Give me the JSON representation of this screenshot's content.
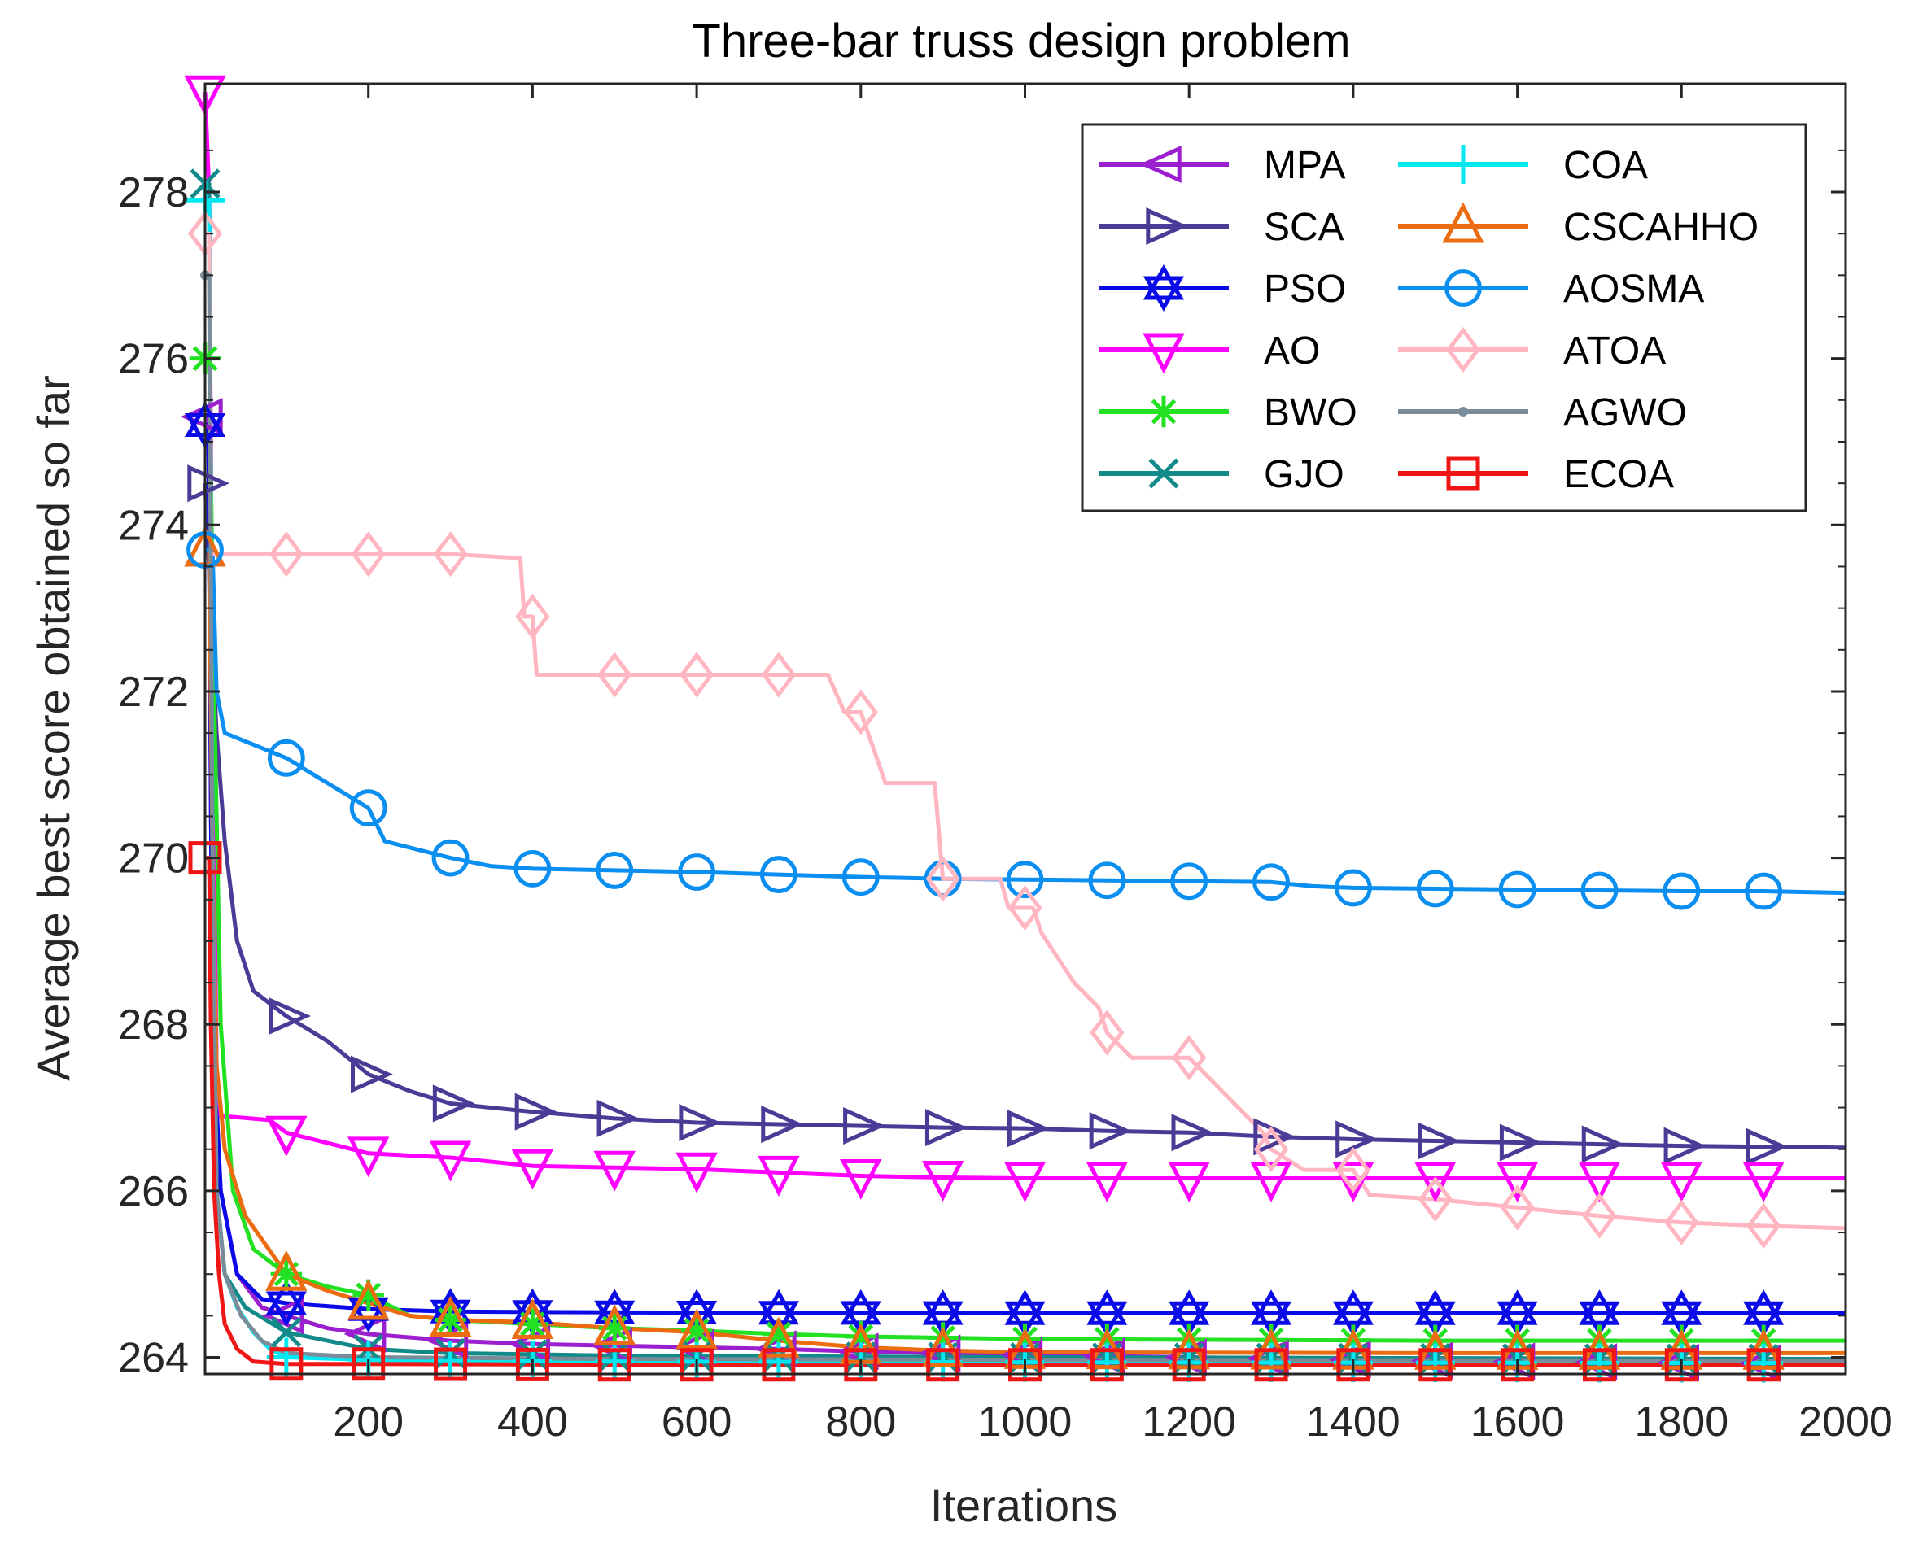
{
  "chart_data": {
    "type": "line",
    "title": "Three-bar truss design problem",
    "xlabel": "Iterations",
    "ylabel": "Average best score obtained so far",
    "xlim": [
      1,
      2000
    ],
    "ylim": [
      263.8,
      279.3
    ],
    "xticks": [
      200,
      400,
      600,
      800,
      1000,
      1200,
      1400,
      1600,
      1800,
      2000
    ],
    "yticks": [
      264,
      266,
      268,
      270,
      272,
      274,
      276,
      278
    ],
    "legend_position": "top-right",
    "series": [
      {
        "name": "MPA",
        "color": "#9B1FCF",
        "marker": "triangle-left",
        "points": [
          [
            1,
            275.3
          ],
          [
            5,
            275.3
          ],
          [
            10,
            268
          ],
          [
            20,
            266
          ],
          [
            40,
            265
          ],
          [
            70,
            264.6
          ],
          [
            100,
            264.5
          ],
          [
            150,
            264.35
          ],
          [
            200,
            264.28
          ],
          [
            300,
            264.2
          ],
          [
            400,
            264.16
          ],
          [
            500,
            264.14
          ],
          [
            600,
            264.12
          ],
          [
            700,
            264.1
          ],
          [
            800,
            264.07
          ],
          [
            1000,
            264.03
          ],
          [
            1200,
            264.0
          ],
          [
            1500,
            263.96
          ],
          [
            2000,
            263.92
          ]
        ]
      },
      {
        "name": "SCA",
        "color": "#4B3A96",
        "marker": "triangle-right",
        "points": [
          [
            1,
            274.5
          ],
          [
            8,
            273
          ],
          [
            15,
            271.5
          ],
          [
            25,
            270.2
          ],
          [
            40,
            269
          ],
          [
            60,
            268.4
          ],
          [
            100,
            268.1
          ],
          [
            150,
            267.8
          ],
          [
            200,
            267.4
          ],
          [
            250,
            267.2
          ],
          [
            300,
            267.05
          ],
          [
            400,
            266.95
          ],
          [
            500,
            266.87
          ],
          [
            600,
            266.82
          ],
          [
            700,
            266.8
          ],
          [
            800,
            266.78
          ],
          [
            900,
            266.76
          ],
          [
            1000,
            266.75
          ],
          [
            1100,
            266.72
          ],
          [
            1200,
            266.7
          ],
          [
            1300,
            266.65
          ],
          [
            1400,
            266.62
          ],
          [
            1500,
            266.6
          ],
          [
            1600,
            266.58
          ],
          [
            1700,
            266.56
          ],
          [
            1800,
            266.54
          ],
          [
            1900,
            266.53
          ],
          [
            2000,
            266.52
          ]
        ]
      },
      {
        "name": "PSO",
        "color": "#0A0AE8",
        "marker": "star",
        "points": [
          [
            1,
            275.2
          ],
          [
            5,
            275.2
          ],
          [
            10,
            268
          ],
          [
            20,
            266
          ],
          [
            40,
            265
          ],
          [
            70,
            264.7
          ],
          [
            100,
            264.65
          ],
          [
            200,
            264.58
          ],
          [
            300,
            264.55
          ],
          [
            500,
            264.54
          ],
          [
            1000,
            264.53
          ],
          [
            2000,
            264.53
          ]
        ]
      },
      {
        "name": "AO",
        "color": "#FF00FF",
        "marker": "triangle-down",
        "points": [
          [
            1,
            279.2
          ],
          [
            6,
            278
          ],
          [
            10,
            272
          ],
          [
            15,
            267.5
          ],
          [
            20,
            266.9
          ],
          [
            80,
            266.85
          ],
          [
            100,
            266.7
          ],
          [
            200,
            266.45
          ],
          [
            300,
            266.4
          ],
          [
            400,
            266.3
          ],
          [
            500,
            266.28
          ],
          [
            600,
            266.26
          ],
          [
            700,
            266.22
          ],
          [
            800,
            266.18
          ],
          [
            900,
            266.16
          ],
          [
            1000,
            266.15
          ],
          [
            1500,
            266.15
          ],
          [
            2000,
            266.15
          ]
        ]
      },
      {
        "name": "BWO",
        "color": "#22E022",
        "marker": "asterisk",
        "points": [
          [
            1,
            276
          ],
          [
            6,
            276
          ],
          [
            12,
            272
          ],
          [
            20,
            268
          ],
          [
            35,
            266
          ],
          [
            60,
            265.3
          ],
          [
            100,
            265
          ],
          [
            150,
            264.85
          ],
          [
            200,
            264.75
          ],
          [
            250,
            264.5
          ],
          [
            300,
            264.45
          ],
          [
            400,
            264.4
          ],
          [
            500,
            264.35
          ],
          [
            600,
            264.32
          ],
          [
            700,
            264.28
          ],
          [
            800,
            264.25
          ],
          [
            1000,
            264.22
          ],
          [
            1500,
            264.2
          ],
          [
            2000,
            264.2
          ]
        ]
      },
      {
        "name": "GJO",
        "color": "#138A8A",
        "marker": "x",
        "points": [
          [
            1,
            278.1
          ],
          [
            6,
            278.1
          ],
          [
            10,
            270
          ],
          [
            15,
            266
          ],
          [
            25,
            265
          ],
          [
            50,
            264.6
          ],
          [
            100,
            264.3
          ],
          [
            150,
            264.2
          ],
          [
            200,
            264.1
          ],
          [
            300,
            264.05
          ],
          [
            500,
            264.02
          ],
          [
            1000,
            264.0
          ],
          [
            2000,
            263.98
          ]
        ]
      },
      {
        "name": "COA",
        "color": "#00E8F2",
        "marker": "plus",
        "points": [
          [
            1,
            277.9
          ],
          [
            6,
            277.9
          ],
          [
            10,
            270
          ],
          [
            15,
            266
          ],
          [
            25,
            265
          ],
          [
            40,
            264.6
          ],
          [
            60,
            264.3
          ],
          [
            80,
            264.1
          ],
          [
            100,
            264.0
          ],
          [
            200,
            263.97
          ],
          [
            500,
            263.95
          ],
          [
            1000,
            263.94
          ],
          [
            2000,
            263.93
          ]
        ]
      },
      {
        "name": "CSCAHHO",
        "color": "#EC6C12",
        "marker": "triangle-up",
        "points": [
          [
            1,
            273.7
          ],
          [
            6,
            273.7
          ],
          [
            10,
            270
          ],
          [
            15,
            267.5
          ],
          [
            25,
            266.5
          ],
          [
            50,
            265.7
          ],
          [
            100,
            265.0
          ],
          [
            150,
            264.8
          ],
          [
            200,
            264.65
          ],
          [
            250,
            264.5
          ],
          [
            300,
            264.45
          ],
          [
            400,
            264.42
          ],
          [
            500,
            264.35
          ],
          [
            600,
            264.3
          ],
          [
            700,
            264.2
          ],
          [
            800,
            264.12
          ],
          [
            900,
            264.08
          ],
          [
            1000,
            264.06
          ],
          [
            1500,
            264.05
          ],
          [
            2000,
            264.05
          ]
        ]
      },
      {
        "name": "AOSMA",
        "color": "#0A8EF0",
        "marker": "circle",
        "points": [
          [
            1,
            273.7
          ],
          [
            10,
            273.7
          ],
          [
            15,
            272
          ],
          [
            25,
            271.5
          ],
          [
            50,
            271.4
          ],
          [
            100,
            271.2
          ],
          [
            150,
            270.9
          ],
          [
            200,
            270.6
          ],
          [
            220,
            270.2
          ],
          [
            300,
            270.0
          ],
          [
            350,
            269.9
          ],
          [
            400,
            269.87
          ],
          [
            500,
            269.85
          ],
          [
            600,
            269.83
          ],
          [
            700,
            269.8
          ],
          [
            800,
            269.77
          ],
          [
            900,
            269.75
          ],
          [
            1000,
            269.74
          ],
          [
            1100,
            269.73
          ],
          [
            1200,
            269.72
          ],
          [
            1300,
            269.71
          ],
          [
            1350,
            269.66
          ],
          [
            1400,
            269.64
          ],
          [
            1500,
            269.63
          ],
          [
            1600,
            269.62
          ],
          [
            1700,
            269.61
          ],
          [
            1800,
            269.6
          ],
          [
            1900,
            269.6
          ],
          [
            2000,
            269.58
          ]
        ]
      },
      {
        "name": "ATOA",
        "color": "#FFB6C1",
        "marker": "diamond",
        "points": [
          [
            1,
            277.5
          ],
          [
            6,
            277.5
          ],
          [
            8,
            273.65
          ],
          [
            100,
            273.65
          ],
          [
            200,
            273.65
          ],
          [
            300,
            273.65
          ],
          [
            385,
            273.6
          ],
          [
            390,
            272.9
          ],
          [
            400,
            272.9
          ],
          [
            405,
            272.2
          ],
          [
            500,
            272.2
          ],
          [
            600,
            272.2
          ],
          [
            700,
            272.2
          ],
          [
            760,
            272.2
          ],
          [
            780,
            271.75
          ],
          [
            800,
            271.75
          ],
          [
            830,
            270.9
          ],
          [
            890,
            270.9
          ],
          [
            900,
            269.75
          ],
          [
            970,
            269.75
          ],
          [
            980,
            269.4
          ],
          [
            1010,
            269.4
          ],
          [
            1020,
            269.1
          ],
          [
            1040,
            268.8
          ],
          [
            1060,
            268.5
          ],
          [
            1090,
            268.2
          ],
          [
            1100,
            267.9
          ],
          [
            1130,
            267.6
          ],
          [
            1200,
            267.6
          ],
          [
            1230,
            267.3
          ],
          [
            1260,
            267.0
          ],
          [
            1290,
            266.7
          ],
          [
            1300,
            266.5
          ],
          [
            1340,
            266.25
          ],
          [
            1400,
            266.25
          ],
          [
            1420,
            265.95
          ],
          [
            1500,
            265.9
          ],
          [
            1600,
            265.8
          ],
          [
            1700,
            265.7
          ],
          [
            1800,
            265.62
          ],
          [
            1900,
            265.58
          ],
          [
            2000,
            265.55
          ]
        ]
      },
      {
        "name": "AGWO",
        "color": "#7A8C9A",
        "marker": "dot",
        "points": [
          [
            1,
            277.0
          ],
          [
            6,
            277.0
          ],
          [
            10,
            270
          ],
          [
            15,
            266
          ],
          [
            25,
            265
          ],
          [
            45,
            264.5
          ],
          [
            70,
            264.2
          ],
          [
            100,
            264.05
          ],
          [
            200,
            264.0
          ],
          [
            500,
            263.98
          ],
          [
            1000,
            263.97
          ],
          [
            2000,
            263.96
          ]
        ]
      },
      {
        "name": "ECOA",
        "color": "#F01616",
        "marker": "square",
        "points": [
          [
            1,
            270.0
          ],
          [
            6,
            270.0
          ],
          [
            8,
            268
          ],
          [
            12,
            266
          ],
          [
            18,
            265
          ],
          [
            25,
            264.4
          ],
          [
            40,
            264.1
          ],
          [
            60,
            263.95
          ],
          [
            100,
            263.92
          ],
          [
            200,
            263.92
          ],
          [
            500,
            263.91
          ],
          [
            1000,
            263.91
          ],
          [
            2000,
            263.91
          ]
        ]
      }
    ]
  }
}
